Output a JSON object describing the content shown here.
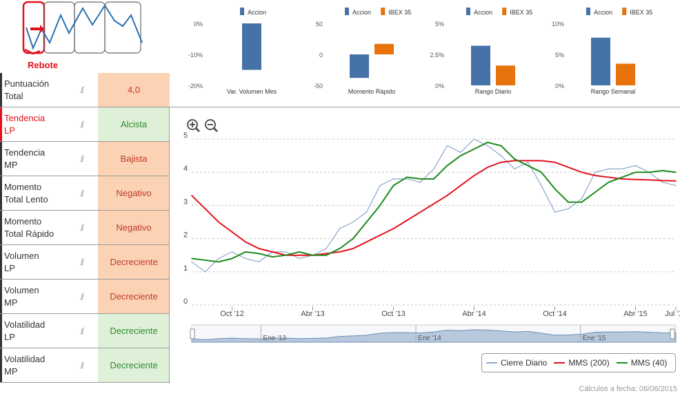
{
  "logo": {
    "caption": "Rebote",
    "accent_color": "#e3101b",
    "icon": "trend-chart-icon"
  },
  "signals": [
    {
      "label": [
        "Puntuación",
        "Total"
      ],
      "value": "4,0",
      "status": "bad",
      "active": false
    },
    {
      "label": [
        "Tendencia",
        "LP"
      ],
      "value": "Alcista",
      "status": "good",
      "active": true
    },
    {
      "label": [
        "Tendencia",
        "MP"
      ],
      "value": "Bajista",
      "status": "bad",
      "active": false
    },
    {
      "label": [
        "Momento",
        "Total Lento"
      ],
      "value": "Negativo",
      "status": "bad",
      "active": false
    },
    {
      "label": [
        "Momento",
        "Total Rápido"
      ],
      "value": "Negativo",
      "status": "bad",
      "active": false
    },
    {
      "label": [
        "Volumen",
        "LP"
      ],
      "value": "Decreciente",
      "status": "bad",
      "active": false
    },
    {
      "label": [
        "Volumen",
        "MP"
      ],
      "value": "Decreciente",
      "status": "bad",
      "active": false
    },
    {
      "label": [
        "Volatilidad",
        "LP"
      ],
      "value": "Decreciente",
      "status": "good",
      "active": false
    },
    {
      "label": [
        "Volatilidad",
        "MP"
      ],
      "value": "Decreciente",
      "status": "good",
      "active": false
    }
  ],
  "info_icon": "info-icon",
  "colors": {
    "accion": "#4572a7",
    "ibex": "#e8720c",
    "cierre": "#8aa7c9",
    "mms200": "#e3101b",
    "mms40": "#1a8a1a",
    "navigator_fill": "#b8c9dd",
    "status_bad_bg": "#fbd3b4",
    "status_good_bg": "#dff0d8"
  },
  "chart_data": [
    {
      "type": "bar",
      "title": "",
      "xlabel": "Var. Volumen Mes",
      "legend": [
        "Accion"
      ],
      "ytick_labels": [
        "0%",
        "-10%",
        "-20%"
      ],
      "ylim": [
        -20,
        0
      ],
      "series": [
        {
          "name": "Accion",
          "values": [
            -15
          ]
        }
      ]
    },
    {
      "type": "bar",
      "title": "",
      "xlabel": "Momento Rápido",
      "legend": [
        "Accion",
        "IBEX 35"
      ],
      "ytick_labels": [
        "50",
        "0",
        "-50"
      ],
      "ylim": [
        -50,
        50
      ],
      "series": [
        {
          "name": "Accion",
          "values": [
            -38
          ]
        },
        {
          "name": "IBEX 35",
          "values": [
            17
          ]
        }
      ]
    },
    {
      "type": "bar",
      "title": "",
      "xlabel": "Rango Diario",
      "legend": [
        "Accion",
        "IBEX 35"
      ],
      "ytick_labels": [
        "5%",
        "2.5%",
        "0%"
      ],
      "ylim": [
        0,
        5
      ],
      "series": [
        {
          "name": "Accion",
          "values": [
            3.2
          ]
        },
        {
          "name": "IBEX 35",
          "values": [
            1.6
          ]
        }
      ]
    },
    {
      "type": "bar",
      "title": "",
      "xlabel": "Rango Semanal",
      "legend": [
        "Accion",
        "IBEX 35"
      ],
      "ytick_labels": [
        "10%",
        "5%",
        "0%"
      ],
      "ylim": [
        0,
        10
      ],
      "series": [
        {
          "name": "Accion",
          "values": [
            7.7
          ]
        },
        {
          "name": "IBEX 35",
          "values": [
            3.5
          ]
        }
      ]
    },
    {
      "type": "line",
      "title": "",
      "xlabel": "",
      "ylabel": "",
      "ylim": [
        0,
        5
      ],
      "yticks": [
        0,
        1,
        2,
        3,
        4,
        5
      ],
      "x_tick_labels": [
        "Oct '12",
        "Abr '13",
        "Oct '13",
        "Abr '14",
        "Oct '14",
        "Abr '15",
        "Jul '15"
      ],
      "x_tick_index": [
        3,
        9,
        15,
        21,
        27,
        33,
        36
      ],
      "navigator_labels": [
        "Ene '13",
        "Ene '14",
        "Ene '15"
      ],
      "legend": [
        "Cierre Diario",
        "MMS (200)",
        "MMS (40)"
      ],
      "legend_position": "bottom-right",
      "grid": true,
      "series": [
        {
          "name": "Cierre Diario",
          "values": [
            1.3,
            1.0,
            1.4,
            1.6,
            1.4,
            1.3,
            1.6,
            1.6,
            1.4,
            1.5,
            1.7,
            2.3,
            2.5,
            2.8,
            3.6,
            3.8,
            3.8,
            3.7,
            4.1,
            4.8,
            4.6,
            5.0,
            4.8,
            4.5,
            4.1,
            4.3,
            3.6,
            2.8,
            2.9,
            3.2,
            4.0,
            4.1,
            4.1,
            4.2,
            4.0,
            3.7,
            3.6
          ]
        },
        {
          "name": "MMS (200)",
          "values": [
            3.3,
            2.9,
            2.5,
            2.2,
            1.9,
            1.7,
            1.6,
            1.5,
            1.5,
            1.5,
            1.55,
            1.6,
            1.7,
            1.9,
            2.1,
            2.3,
            2.55,
            2.8,
            3.05,
            3.3,
            3.6,
            3.9,
            4.15,
            4.3,
            4.35,
            4.35,
            4.35,
            4.3,
            4.15,
            4.0,
            3.9,
            3.85,
            3.8,
            3.78,
            3.77,
            3.75,
            3.74
          ]
        },
        {
          "name": "MMS (40)",
          "values": [
            1.4,
            1.35,
            1.3,
            1.4,
            1.6,
            1.55,
            1.45,
            1.5,
            1.6,
            1.5,
            1.5,
            1.7,
            2.0,
            2.5,
            3.0,
            3.6,
            3.85,
            3.8,
            3.8,
            4.2,
            4.5,
            4.7,
            4.9,
            4.8,
            4.4,
            4.2,
            4.0,
            3.5,
            3.1,
            3.1,
            3.4,
            3.7,
            3.85,
            4.0,
            4.0,
            4.05,
            4.0
          ]
        }
      ]
    }
  ],
  "legend_box": {
    "items": [
      "Cierre Diario",
      "MMS (200)",
      "MMS (40)"
    ]
  },
  "zoom": {
    "in_icon": "zoom-in-icon",
    "out_icon": "zoom-out-icon"
  },
  "footer": {
    "text": "Cálculos a fecha: 08/06/2015"
  }
}
